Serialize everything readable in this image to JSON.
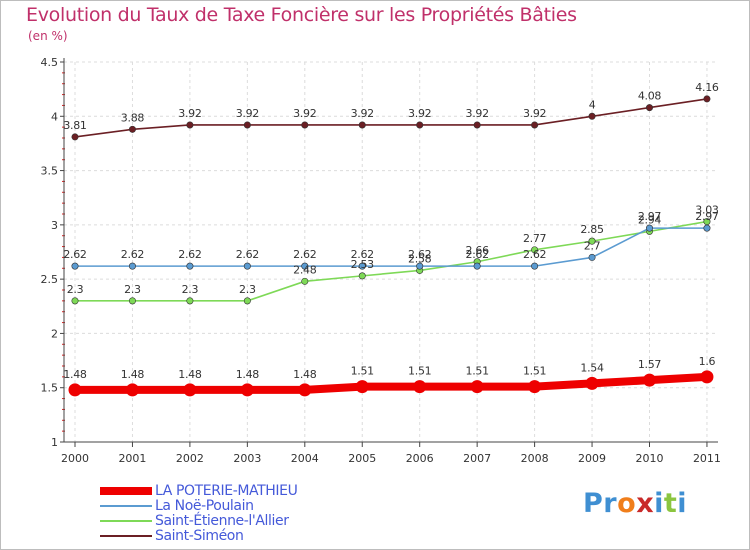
{
  "chart_data": {
    "type": "line",
    "title": "Evolution du Taux de Taxe Foncière sur les Propriétés Bâties",
    "subtitle": "(en %)",
    "xlabel": "",
    "ylabel": "",
    "ylim": [
      1,
      4.5
    ],
    "yticks": [
      "1",
      "1.5",
      "2",
      "2.5",
      "3",
      "3.5",
      "4",
      "4.5"
    ],
    "categories": [
      "2000",
      "2001",
      "2002",
      "2003",
      "2004",
      "2005",
      "2006",
      "2007",
      "2008",
      "2009",
      "2010",
      "2011"
    ],
    "series": [
      {
        "name": "LA POTERIE-MATHIEU",
        "color": "#ee0000",
        "values": [
          1.48,
          1.48,
          1.48,
          1.48,
          1.48,
          1.51,
          1.51,
          1.51,
          1.51,
          1.54,
          1.57,
          1.6
        ],
        "labels": [
          "1.48",
          "1.48",
          "1.48",
          "1.48",
          "1.48",
          "1.51",
          "1.51",
          "1.51",
          "1.51",
          "1.54",
          "1.57",
          "1.6"
        ]
      },
      {
        "name": "La Noë-Poulain",
        "color": "#5b9bd1",
        "values": [
          2.62,
          2.62,
          2.62,
          2.62,
          2.62,
          2.62,
          2.62,
          2.62,
          2.62,
          2.7,
          2.97,
          2.97
        ],
        "labels": [
          "2.62",
          "2.62",
          "2.62",
          "2.62",
          "2.62",
          "2.62",
          "2.62",
          "2.62",
          "2.62",
          "2.7",
          "2.97",
          "2.97"
        ]
      },
      {
        "name": "Saint-Étienne-l'Allier",
        "color": "#7ed957",
        "values": [
          2.3,
          2.3,
          2.3,
          2.3,
          2.48,
          2.53,
          2.58,
          2.66,
          2.77,
          2.85,
          2.94,
          3.03
        ],
        "labels": [
          "2.3",
          "2.3",
          "2.3",
          "2.3",
          "2.48",
          "2.53",
          "2.58",
          "2.66",
          "2.77",
          "2.85",
          "2.94",
          "3.03"
        ]
      },
      {
        "name": "Saint-Siméon",
        "color": "#6b1f24",
        "values": [
          3.81,
          3.88,
          3.92,
          3.92,
          3.92,
          3.92,
          3.92,
          3.92,
          3.92,
          4.0,
          4.08,
          4.16
        ],
        "labels": [
          "3.81",
          "3.88",
          "3.92",
          "3.92",
          "3.92",
          "3.92",
          "3.92",
          "3.92",
          "3.92",
          "4",
          "4.08",
          "4.16"
        ]
      }
    ],
    "legend_position": "bottom-left"
  },
  "brand": {
    "letters": [
      "P",
      "r",
      "o",
      "x",
      "i",
      "t",
      "i"
    ],
    "colors": [
      "#3f8fd2",
      "#3f8fd2",
      "#f07e1b",
      "#c92a2a",
      "#3f8fd2",
      "#8bc53f",
      "#3f8fd2"
    ]
  }
}
